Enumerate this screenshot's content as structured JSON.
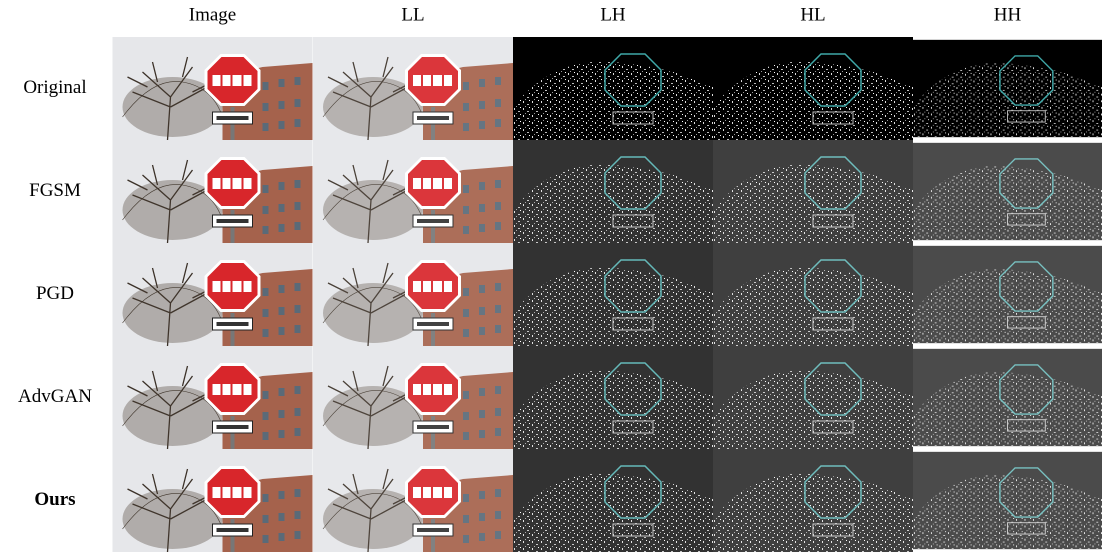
{
  "columns": [
    "Image",
    "LL",
    "LH",
    "HL",
    "HH"
  ],
  "rows": [
    "Original",
    "FGSM",
    "PGD",
    "AdvGAN",
    "Ours"
  ]
}
